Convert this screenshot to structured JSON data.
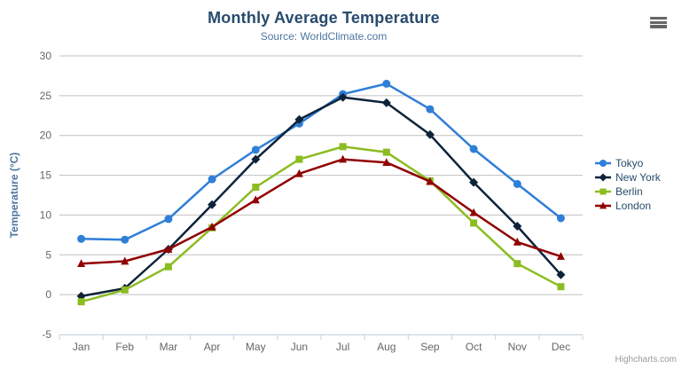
{
  "chart": {
    "title": "Monthly Average Temperature",
    "subtitle": "Source: WorldClimate.com",
    "credit": "Highcharts.com",
    "menu_icon": "hamburger-icon"
  },
  "colors": {
    "title": "#274b6d",
    "subtitle": "#4d759e",
    "axis_title": "#4d759e",
    "axis_label": "#666666",
    "grid_line": "#c0c0c0",
    "axis_line": "#c0d0e0",
    "legend_text": "#274b6d",
    "credit": "#999999",
    "menu_icon": "#666666"
  },
  "chart_data": {
    "type": "line",
    "title": "Monthly Average Temperature",
    "subtitle": "Source: WorldClimate.com",
    "categories": [
      "Jan",
      "Feb",
      "Mar",
      "Apr",
      "May",
      "Jun",
      "Jul",
      "Aug",
      "Sep",
      "Oct",
      "Nov",
      "Dec"
    ],
    "series": [
      {
        "name": "Tokyo",
        "color": "#2f7ed8",
        "marker": "circle",
        "values": [
          7.0,
          6.9,
          9.5,
          14.5,
          18.2,
          21.5,
          25.2,
          26.5,
          23.3,
          18.3,
          13.9,
          9.6
        ]
      },
      {
        "name": "New York",
        "color": "#0d233a",
        "marker": "diamond",
        "values": [
          -0.2,
          0.8,
          5.7,
          11.3,
          17.0,
          22.0,
          24.8,
          24.1,
          20.1,
          14.1,
          8.6,
          2.5
        ]
      },
      {
        "name": "Berlin",
        "color": "#8bbc21",
        "marker": "square",
        "values": [
          -0.9,
          0.6,
          3.5,
          8.4,
          13.5,
          17.0,
          18.6,
          17.9,
          14.3,
          9.0,
          3.9,
          1.0
        ]
      },
      {
        "name": "London",
        "color": "#910000",
        "marker": "triangle",
        "values": [
          3.9,
          4.2,
          5.7,
          8.5,
          11.9,
          15.2,
          17.0,
          16.6,
          14.2,
          10.3,
          6.6,
          4.8
        ]
      }
    ],
    "xlabel": "",
    "ylabel": "Temperature (°C)",
    "ylim": [
      -5,
      30
    ],
    "ytick_step": 5,
    "yticks": [
      -5,
      0,
      5,
      10,
      15,
      20,
      25,
      30
    ],
    "grid": true,
    "legend_position": "right"
  }
}
